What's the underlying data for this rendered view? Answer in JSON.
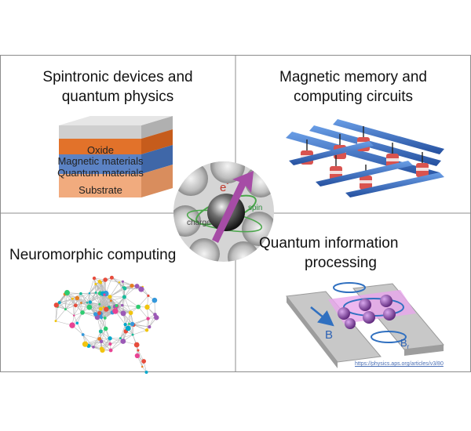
{
  "panels": {
    "top_left": {
      "title_line1": "Spintronic devices and",
      "title_line2": "quantum physics"
    },
    "top_right": {
      "title_line1": "Magnetic memory and",
      "title_line2": "computing circuits"
    },
    "bottom_left": {
      "title_line1": "Neuromorphic computing"
    },
    "bottom_right": {
      "title_line1": "Quantum information",
      "title_line2": "processing"
    }
  },
  "layer_stack": {
    "layers": [
      "Oxide",
      "Magnetic materials",
      "Quantum materials",
      "Substrate"
    ],
    "colors": {
      "oxide": "#cfcfcf",
      "magnetic": "#e2722a",
      "quantum": "#5b82c4",
      "substrate": "#f1ab7e"
    }
  },
  "electron": {
    "charge_symbol": "e",
    "charge_sign": "-",
    "spin_label": "spin",
    "charge_label": "charge"
  },
  "quantum": {
    "field_label": "B",
    "field_sub_label": "B",
    "field_sub_index": "r"
  },
  "source_link": "https://physics.aps.org/articles/v3/80",
  "colors": {
    "border": "#8c8c8c",
    "memory_bar": "#3a6fc4",
    "pillar_red": "#d9534f",
    "qubit": "#7a3f9d",
    "arrow": "#a64ca6",
    "spin_ring": "#4aa64a"
  }
}
